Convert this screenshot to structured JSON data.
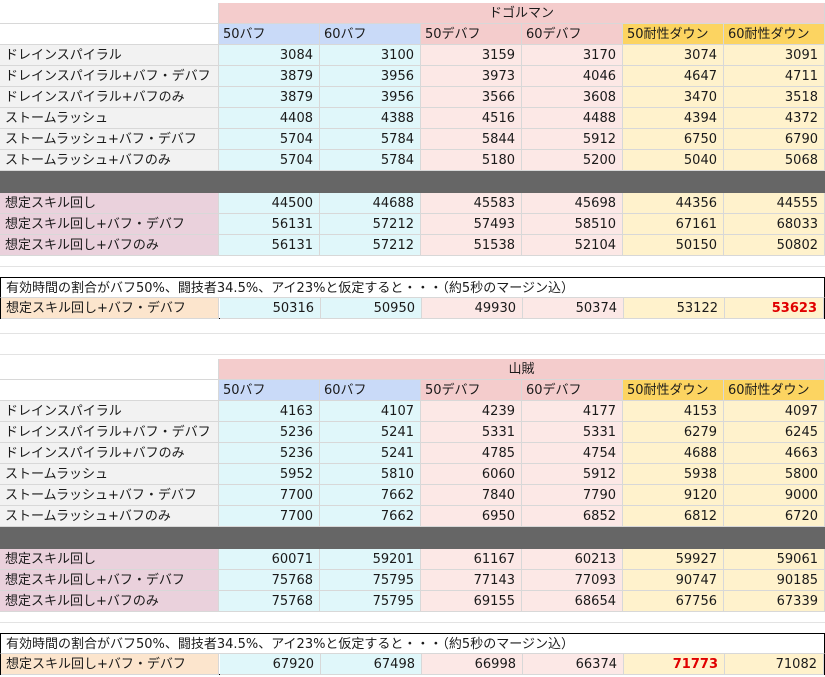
{
  "headers": [
    "50バフ",
    "60バフ",
    "50デバフ",
    "60デバフ",
    "50耐性ダウン",
    "60耐性ダウン"
  ],
  "note": "有効時間の割合がバフ50%、闘技者34.5%、アイ23%と仮定すると・・・（約5秒のマージン込）",
  "result_label": "想定スキル回し+バフ・デバフ",
  "colors": {
    "highlight": "#e00000",
    "separator": "#666666"
  },
  "table1": {
    "title": "ドゴルマン",
    "rows": [
      {
        "label": "ドレインスパイラル",
        "values": [
          "3084",
          "3100",
          "3159",
          "3170",
          "3074",
          "3091"
        ]
      },
      {
        "label": "ドレインスパイラル+バフ・デバフ",
        "values": [
          "3879",
          "3956",
          "3973",
          "4046",
          "4647",
          "4711"
        ]
      },
      {
        "label": "ドレインスパイラル+バフのみ",
        "values": [
          "3879",
          "3956",
          "3566",
          "3608",
          "3470",
          "3518"
        ]
      },
      {
        "label": "ストームラッシュ",
        "values": [
          "4408",
          "4388",
          "4516",
          "4488",
          "4394",
          "4372"
        ]
      },
      {
        "label": "ストームラッシュ+バフ・デバフ",
        "values": [
          "5704",
          "5784",
          "5844",
          "5912",
          "6750",
          "6790"
        ]
      },
      {
        "label": "ストームラッシュ+バフのみ",
        "values": [
          "5704",
          "5784",
          "5180",
          "5200",
          "5040",
          "5068"
        ]
      }
    ],
    "rotation": [
      {
        "label": "想定スキル回し",
        "values": [
          "44500",
          "44688",
          "45583",
          "45698",
          "44356",
          "44555"
        ]
      },
      {
        "label": "想定スキル回し+バフ・デバフ",
        "values": [
          "56131",
          "57212",
          "57493",
          "58510",
          "67161",
          "68033"
        ]
      },
      {
        "label": "想定スキル回し+バフのみ",
        "values": [
          "56131",
          "57212",
          "51538",
          "52104",
          "50150",
          "50802"
        ]
      }
    ],
    "result_values": [
      "50316",
      "50950",
      "49930",
      "50374",
      "53122",
      "53623"
    ],
    "result_max_index": 5
  },
  "table2": {
    "title": "山賊",
    "rows": [
      {
        "label": "ドレインスパイラル",
        "values": [
          "4163",
          "4107",
          "4239",
          "4177",
          "4153",
          "4097"
        ]
      },
      {
        "label": "ドレインスパイラル+バフ・デバフ",
        "values": [
          "5236",
          "5241",
          "5331",
          "5331",
          "6279",
          "6245"
        ]
      },
      {
        "label": "ドレインスパイラル+バフのみ",
        "values": [
          "5236",
          "5241",
          "4785",
          "4754",
          "4688",
          "4663"
        ]
      },
      {
        "label": "ストームラッシュ",
        "values": [
          "5952",
          "5810",
          "6060",
          "5912",
          "5938",
          "5800"
        ]
      },
      {
        "label": "ストームラッシュ+バフ・デバフ",
        "values": [
          "7700",
          "7662",
          "7840",
          "7790",
          "9120",
          "9000"
        ]
      },
      {
        "label": "ストームラッシュ+バフのみ",
        "values": [
          "7700",
          "7662",
          "6950",
          "6852",
          "6812",
          "6720"
        ]
      }
    ],
    "rotation": [
      {
        "label": "想定スキル回し",
        "values": [
          "60071",
          "59201",
          "61167",
          "60213",
          "59927",
          "59061"
        ]
      },
      {
        "label": "想定スキル回し+バフ・デバフ",
        "values": [
          "75768",
          "75795",
          "77143",
          "77093",
          "90747",
          "90185"
        ]
      },
      {
        "label": "想定スキル回し+バフのみ",
        "values": [
          "75768",
          "75795",
          "69155",
          "68654",
          "67756",
          "67339"
        ]
      }
    ],
    "result_values": [
      "67920",
      "67498",
      "66998",
      "66374",
      "71773",
      "71082"
    ],
    "result_max_index": 4
  }
}
